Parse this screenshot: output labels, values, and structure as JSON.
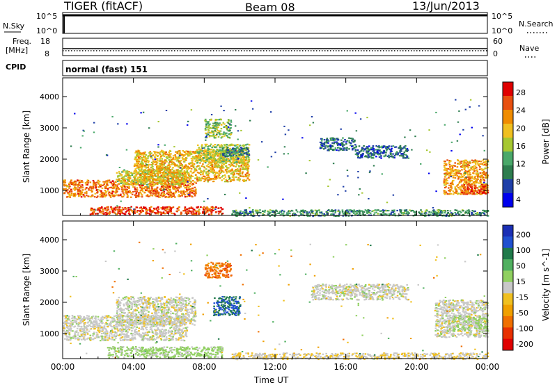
{
  "header": {
    "radar_title": "TIGER (fitACF)",
    "beam": "Beam 08",
    "date": "13/Jun/2013"
  },
  "status_panels": {
    "nsky_label": "N.Sky",
    "nsky_ticks": [
      "10^5",
      "10^0"
    ],
    "nsearch_label": "N.Search",
    "nsearch_ticks": [
      "10^5",
      "10^0"
    ],
    "freq_label": "Freq.",
    "freq_unit": "[MHz]",
    "freq_ticks": [
      "18",
      "8"
    ],
    "nave_label": "Nave",
    "nave_ticks": [
      "60",
      "0"
    ],
    "cpid_label": "CPID",
    "cpid_value": "normal (fast) 151"
  },
  "colors": {
    "power_scale": [
      "#0000ee",
      "#1f3fa8",
      "#2e7d4f",
      "#4aa86a",
      "#a6c832",
      "#f0c020",
      "#f08c00",
      "#e85010",
      "#e00000"
    ],
    "velocity_scale": [
      "#1b2fb5",
      "#2050d0",
      "#207a4a",
      "#50b060",
      "#90d060",
      "#c8c8c8",
      "#f0c020",
      "#f0a000",
      "#f07000",
      "#e83000",
      "#e00000"
    ],
    "background": "#ffffff",
    "frame": "#000000"
  },
  "chart_data": [
    {
      "type": "heatmap",
      "panel": "power",
      "ylabel": "Slant Range [km]",
      "xlabel": "",
      "colorbar_label": "Power [dB]",
      "colorbar_ticks": [
        "28",
        "24",
        "20",
        "16",
        "12",
        "8",
        "4"
      ],
      "x_ticks": [
        "00:00",
        "04:00",
        "08:00",
        "12:00",
        "16:00",
        "20:00",
        "00:00"
      ],
      "y_ticks": [
        "4000",
        "3000",
        "2000",
        "1000"
      ],
      "ylim": [
        200,
        4600
      ],
      "xlim_hours": [
        0,
        24
      ],
      "regions": [
        {
          "t0": 0.0,
          "t1": 7.5,
          "r0": 800,
          "r1": 1350,
          "level": 0.8
        },
        {
          "t0": 3.0,
          "t1": 7.0,
          "r0": 1200,
          "r1": 1700,
          "level": 0.55
        },
        {
          "t0": 4.0,
          "t1": 10.5,
          "r0": 1300,
          "r1": 2300,
          "level": 0.65
        },
        {
          "t0": 7.5,
          "t1": 10.5,
          "r0": 1900,
          "r1": 2500,
          "level": 0.5
        },
        {
          "t0": 8.0,
          "t1": 9.5,
          "r0": 2700,
          "r1": 3300,
          "level": 0.45
        },
        {
          "t0": 1.5,
          "t1": 9.0,
          "r0": 250,
          "r1": 500,
          "level": 0.9
        },
        {
          "t0": 9.0,
          "t1": 10.5,
          "r0": 2100,
          "r1": 2400,
          "level": 0.25
        },
        {
          "t0": 14.5,
          "t1": 16.5,
          "r0": 2300,
          "r1": 2700,
          "level": 0.18
        },
        {
          "t0": 16.5,
          "t1": 19.5,
          "r0": 2050,
          "r1": 2450,
          "level": 0.2
        },
        {
          "t0": 21.5,
          "t1": 24.0,
          "r0": 900,
          "r1": 2000,
          "level": 0.72
        },
        {
          "t0": 22.5,
          "t1": 24.0,
          "r0": 900,
          "r1": 1200,
          "level": 0.9
        },
        {
          "t0": 9.5,
          "t1": 24.0,
          "r0": 200,
          "r1": 400,
          "level": 0.3
        }
      ]
    },
    {
      "type": "heatmap",
      "panel": "velocity",
      "ylabel": "Slant Range [km]",
      "xlabel": "Time UT",
      "colorbar_label": "Velocity [m s^-1]",
      "colorbar_ticks": [
        "200",
        "100",
        "50",
        "15",
        "-15",
        "-50",
        "-100",
        "-200"
      ],
      "x_ticks": [
        "00:00",
        "04:00",
        "08:00",
        "12:00",
        "16:00",
        "20:00",
        "00:00"
      ],
      "y_ticks": [
        "4000",
        "3000",
        "2000",
        "1000"
      ],
      "ylim": [
        200,
        4600
      ],
      "xlim_hours": [
        0,
        24
      ],
      "regions": [
        {
          "t0": 0.0,
          "t1": 7.0,
          "r0": 800,
          "r1": 1600,
          "vel": 0
        },
        {
          "t0": 3.0,
          "t1": 7.5,
          "r0": 1300,
          "r1": 2200,
          "vel": 0
        },
        {
          "t0": 8.5,
          "t1": 10.0,
          "r0": 1600,
          "r1": 2200,
          "vel": 180
        },
        {
          "t0": 8.0,
          "t1": 9.5,
          "r0": 2800,
          "r1": 3300,
          "vel": -150
        },
        {
          "t0": 2.5,
          "t1": 9.0,
          "r0": 250,
          "r1": 600,
          "vel": 40
        },
        {
          "t0": 9.5,
          "t1": 24.0,
          "r0": 200,
          "r1": 400,
          "vel": -20
        },
        {
          "t0": 14.0,
          "t1": 19.5,
          "r0": 2100,
          "r1": 2600,
          "vel": 0
        },
        {
          "t0": 21.0,
          "t1": 24.0,
          "r0": 900,
          "r1": 2100,
          "vel": 0
        },
        {
          "t0": 22.0,
          "t1": 24.0,
          "r0": 1100,
          "r1": 1600,
          "vel": 30
        }
      ]
    }
  ]
}
